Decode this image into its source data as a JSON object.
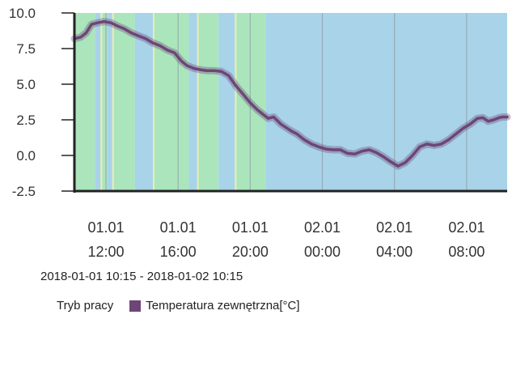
{
  "chart_data": {
    "type": "line",
    "title": "",
    "ylim": [
      -2.5,
      10.0
    ],
    "y_ticks": [
      "10.0",
      "7.5",
      "5.0",
      "2.5",
      "0.0",
      "-2.5"
    ],
    "y_tick_values": [
      10.0,
      7.5,
      5.0,
      2.5,
      0.0,
      -2.5
    ],
    "x_range_hours": [
      10.25,
      34.25
    ],
    "x_ticks": [
      {
        "hour": 12,
        "line1": "01.01",
        "line2": "12:00"
      },
      {
        "hour": 16,
        "line1": "01.01",
        "line2": "16:00"
      },
      {
        "hour": 20,
        "line1": "01.01",
        "line2": "20:00"
      },
      {
        "hour": 24,
        "line1": "02.01",
        "line2": "00:00"
      },
      {
        "hour": 28,
        "line1": "02.01",
        "line2": "04:00"
      },
      {
        "hour": 32,
        "line1": "02.01",
        "line2": "08:00"
      }
    ],
    "mode_bands": [
      {
        "start": 10.25,
        "end": 11.4,
        "mode": "green"
      },
      {
        "start": 11.4,
        "end": 11.7,
        "mode": "blue"
      },
      {
        "start": 11.7,
        "end": 12.05,
        "mode": "green"
      },
      {
        "start": 12.05,
        "end": 12.35,
        "mode": "blue"
      },
      {
        "start": 12.35,
        "end": 13.6,
        "mode": "green"
      },
      {
        "start": 13.6,
        "end": 14.6,
        "mode": "blue"
      },
      {
        "start": 14.6,
        "end": 16.6,
        "mode": "green"
      },
      {
        "start": 16.6,
        "end": 17.05,
        "mode": "blue"
      },
      {
        "start": 17.05,
        "end": 18.25,
        "mode": "green"
      },
      {
        "start": 18.25,
        "end": 19.15,
        "mode": "blue"
      },
      {
        "start": 19.15,
        "end": 20.85,
        "mode": "green"
      },
      {
        "start": 20.85,
        "end": 34.25,
        "mode": "blue"
      }
    ],
    "mode_colors": {
      "green": "#abe5bc",
      "blue": "#a8d3e9",
      "edge": "#ecebb4",
      "grid": "#8fa0a6"
    },
    "series": [
      {
        "name": "Temperatura zewnętrzna[°C]",
        "color": "#6e4577",
        "x": [
          10.25,
          10.6,
          10.9,
          11.2,
          11.5,
          11.9,
          12.3,
          12.6,
          13.0,
          13.4,
          13.8,
          14.2,
          14.6,
          15.0,
          15.4,
          15.8,
          16.2,
          16.5,
          16.9,
          17.3,
          17.6,
          18.0,
          18.4,
          18.8,
          19.2,
          19.6,
          20.0,
          20.4,
          20.7,
          21.0,
          21.3,
          21.7,
          22.0,
          22.3,
          22.6,
          23.0,
          23.4,
          23.8,
          24.2,
          24.6,
          25.0,
          25.4,
          25.8,
          26.2,
          26.6,
          27.0,
          27.4,
          27.8,
          28.2,
          28.6,
          29.0,
          29.4,
          29.8,
          30.2,
          30.6,
          31.0,
          31.4,
          31.8,
          32.2,
          32.6,
          32.9,
          33.2,
          33.5,
          33.8,
          34.0,
          34.25
        ],
        "values": [
          8.2,
          8.3,
          8.6,
          9.2,
          9.3,
          9.4,
          9.3,
          9.1,
          8.9,
          8.6,
          8.4,
          8.2,
          7.9,
          7.7,
          7.4,
          7.2,
          6.6,
          6.3,
          6.1,
          6.0,
          5.95,
          5.95,
          5.9,
          5.6,
          4.9,
          4.3,
          3.7,
          3.2,
          2.9,
          2.6,
          2.7,
          2.2,
          1.95,
          1.7,
          1.5,
          1.1,
          0.8,
          0.6,
          0.45,
          0.4,
          0.4,
          0.15,
          0.1,
          0.3,
          0.4,
          0.2,
          -0.1,
          -0.45,
          -0.75,
          -0.5,
          0.0,
          0.6,
          0.8,
          0.7,
          0.8,
          1.1,
          1.5,
          1.9,
          2.2,
          2.6,
          2.65,
          2.4,
          2.5,
          2.65,
          2.7,
          2.7
        ]
      }
    ]
  },
  "range_text": "2018-01-01 10:15 - 2018-01-02 10:15",
  "legend": {
    "mode_label": "Tryb pracy",
    "series_label": "Temperatura zewnętrzna[°C]",
    "series_color": "#6e4577"
  }
}
